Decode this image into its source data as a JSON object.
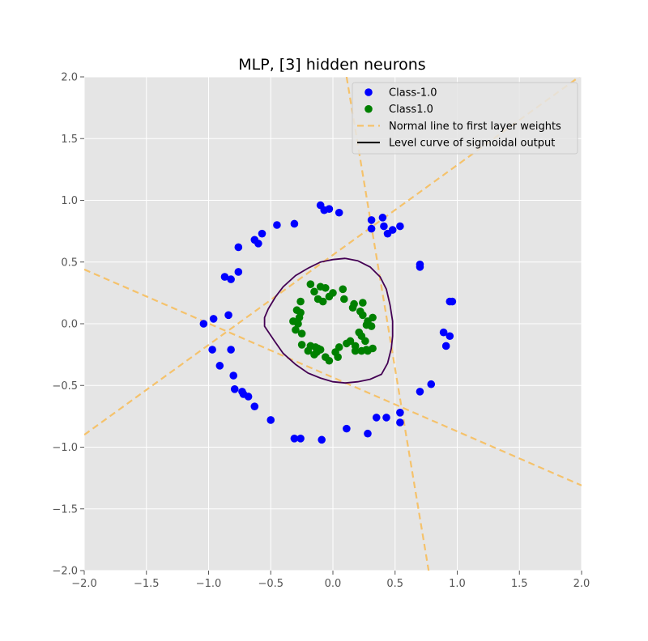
{
  "chart_data": {
    "type": "scatter",
    "title": "MLP, [3] hidden neurons",
    "xlabel": "",
    "ylabel": "",
    "xlim": [
      -2.0,
      2.0
    ],
    "ylim": [
      -2.0,
      2.0
    ],
    "xticks": [
      "−2.0",
      "−1.5",
      "−1.0",
      "−0.5",
      "0.0",
      "0.5",
      "1.0",
      "1.5",
      "2.0"
    ],
    "yticks": [
      "−2.0",
      "−1.5",
      "−1.0",
      "−0.5",
      "0.0",
      "0.5",
      "1.0",
      "1.5",
      "2.0"
    ],
    "xtick_values": [
      -2.0,
      -1.5,
      -1.0,
      -0.5,
      0.0,
      0.5,
      1.0,
      1.5,
      2.0
    ],
    "ytick_values": [
      -2.0,
      -1.5,
      -1.0,
      -0.5,
      0.0,
      0.5,
      1.0,
      1.5,
      2.0
    ],
    "grid": true,
    "legend_position": "top-right",
    "colors": {
      "class_neg": "#0000ff",
      "class_pos": "#008000",
      "normal_line": "#f5c26b",
      "level_curve": "#440154",
      "legend_level": "#000000",
      "plot_bg": "#e5e5e5",
      "grid": "#ffffff"
    },
    "legend": [
      {
        "label": "Class-1.0",
        "kind": "dot",
        "color": "#0000ff"
      },
      {
        "label": "Class1.0",
        "kind": "dot",
        "color": "#008000"
      },
      {
        "label": "Normal line to first layer weights",
        "kind": "dash",
        "color": "#f5c26b"
      },
      {
        "label": "Level curve of sigmoidal output",
        "kind": "line",
        "color": "#000000"
      }
    ],
    "series": [
      {
        "name": "Class-1.0",
        "points": [
          [
            -0.1,
            0.96
          ],
          [
            -0.07,
            0.92
          ],
          [
            -0.03,
            0.93
          ],
          [
            0.05,
            0.9
          ],
          [
            0.31,
            0.84
          ],
          [
            0.4,
            0.86
          ],
          [
            0.31,
            0.77
          ],
          [
            0.41,
            0.79
          ],
          [
            0.44,
            0.73
          ],
          [
            0.48,
            0.76
          ],
          [
            0.54,
            0.79
          ],
          [
            -0.45,
            0.8
          ],
          [
            -0.31,
            0.81
          ],
          [
            -0.57,
            0.73
          ],
          [
            -0.63,
            0.68
          ],
          [
            -0.6,
            0.65
          ],
          [
            -0.76,
            0.62
          ],
          [
            -0.76,
            0.42
          ],
          [
            -0.87,
            0.38
          ],
          [
            -0.82,
            0.36
          ],
          [
            -0.84,
            0.07
          ],
          [
            -0.96,
            0.04
          ],
          [
            -1.04,
            0.0
          ],
          [
            -0.97,
            -0.21
          ],
          [
            -0.82,
            -0.21
          ],
          [
            -0.91,
            -0.34
          ],
          [
            -0.8,
            -0.42
          ],
          [
            -0.79,
            -0.53
          ],
          [
            -0.73,
            -0.55
          ],
          [
            -0.72,
            -0.57
          ],
          [
            -0.68,
            -0.59
          ],
          [
            -0.63,
            -0.67
          ],
          [
            -0.5,
            -0.78
          ],
          [
            -0.31,
            -0.93
          ],
          [
            -0.26,
            -0.93
          ],
          [
            -0.09,
            -0.94
          ],
          [
            0.11,
            -0.85
          ],
          [
            0.28,
            -0.89
          ],
          [
            0.35,
            -0.76
          ],
          [
            0.43,
            -0.76
          ],
          [
            0.54,
            -0.72
          ],
          [
            0.54,
            -0.8
          ],
          [
            0.7,
            -0.55
          ],
          [
            0.79,
            -0.49
          ],
          [
            0.7,
            0.48
          ],
          [
            0.7,
            0.46
          ],
          [
            0.94,
            0.18
          ],
          [
            0.96,
            0.18
          ],
          [
            0.89,
            -0.07
          ],
          [
            0.94,
            -0.1
          ],
          [
            0.91,
            -0.18
          ]
        ]
      },
      {
        "name": "Class1.0",
        "points": [
          [
            -0.18,
            0.32
          ],
          [
            -0.15,
            0.26
          ],
          [
            -0.1,
            0.3
          ],
          [
            -0.06,
            0.29
          ],
          [
            -0.03,
            0.22
          ],
          [
            0.0,
            0.25
          ],
          [
            0.08,
            0.28
          ],
          [
            -0.12,
            0.2
          ],
          [
            -0.08,
            0.18
          ],
          [
            0.09,
            0.2
          ],
          [
            -0.26,
            0.18
          ],
          [
            0.17,
            0.16
          ],
          [
            0.24,
            0.17
          ],
          [
            0.16,
            0.13
          ],
          [
            -0.29,
            0.11
          ],
          [
            -0.26,
            0.09
          ],
          [
            0.22,
            0.1
          ],
          [
            0.24,
            0.07
          ],
          [
            -0.27,
            0.05
          ],
          [
            0.28,
            0.02
          ],
          [
            0.32,
            0.05
          ],
          [
            -0.32,
            0.02
          ],
          [
            -0.28,
            0.0
          ],
          [
            0.27,
            -0.01
          ],
          [
            0.31,
            -0.02
          ],
          [
            -0.3,
            -0.05
          ],
          [
            -0.25,
            -0.08
          ],
          [
            0.21,
            -0.07
          ],
          [
            0.23,
            -0.1
          ],
          [
            0.26,
            -0.14
          ],
          [
            -0.25,
            -0.17
          ],
          [
            0.11,
            -0.16
          ],
          [
            0.14,
            -0.14
          ],
          [
            0.32,
            -0.2
          ],
          [
            -0.18,
            -0.18
          ],
          [
            -0.14,
            -0.19
          ],
          [
            0.18,
            -0.18
          ],
          [
            0.27,
            -0.21
          ],
          [
            0.28,
            -0.22
          ],
          [
            -0.2,
            -0.22
          ],
          [
            -0.13,
            -0.23
          ],
          [
            -0.1,
            -0.21
          ],
          [
            0.05,
            -0.19
          ],
          [
            0.18,
            -0.22
          ],
          [
            0.23,
            -0.22
          ],
          [
            0.02,
            -0.23
          ],
          [
            -0.15,
            -0.25
          ],
          [
            -0.06,
            -0.27
          ],
          [
            -0.03,
            -0.3
          ],
          [
            0.04,
            -0.27
          ],
          [
            -0.12,
            -0.2
          ]
        ]
      }
    ],
    "normal_lines": [
      {
        "points": [
          [
            0.11,
            2.0
          ],
          [
            0.77,
            -2.0
          ]
        ]
      },
      {
        "points": [
          [
            -2.0,
            -0.9
          ],
          [
            1.98,
            2.0
          ]
        ]
      },
      {
        "points": [
          [
            -2.0,
            0.44
          ],
          [
            2.0,
            -1.31
          ]
        ]
      }
    ],
    "level_curve": [
      [
        0.1,
        0.53
      ],
      [
        0.2,
        0.51
      ],
      [
        0.3,
        0.46
      ],
      [
        0.38,
        0.38
      ],
      [
        0.43,
        0.28
      ],
      [
        0.46,
        0.15
      ],
      [
        0.48,
        0.02
      ],
      [
        0.48,
        -0.1
      ],
      [
        0.47,
        -0.2
      ],
      [
        0.44,
        -0.32
      ],
      [
        0.39,
        -0.41
      ],
      [
        0.3,
        -0.45
      ],
      [
        0.2,
        -0.47
      ],
      [
        0.1,
        -0.48
      ],
      [
        0.0,
        -0.47
      ],
      [
        -0.1,
        -0.44
      ],
      [
        -0.2,
        -0.4
      ],
      [
        -0.3,
        -0.33
      ],
      [
        -0.4,
        -0.24
      ],
      [
        -0.47,
        -0.14
      ],
      [
        -0.55,
        -0.02
      ],
      [
        -0.55,
        0.05
      ],
      [
        -0.52,
        0.12
      ],
      [
        -0.46,
        0.22
      ],
      [
        -0.4,
        0.3
      ],
      [
        -0.3,
        0.39
      ],
      [
        -0.2,
        0.45
      ],
      [
        -0.1,
        0.5
      ],
      [
        0.0,
        0.52
      ],
      [
        0.1,
        0.53
      ]
    ]
  }
}
